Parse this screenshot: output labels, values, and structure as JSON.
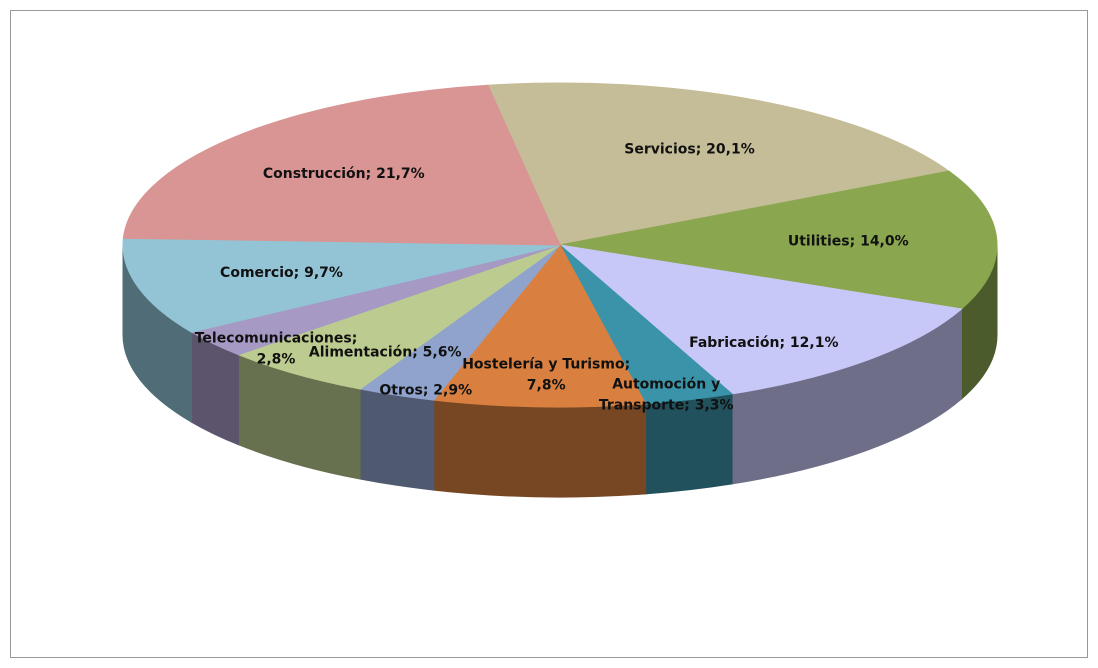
{
  "chart_data": {
    "type": "pie",
    "values": [
      20.1,
      14.0,
      12.1,
      3.3,
      7.8,
      2.9,
      5.6,
      2.8,
      9.7,
      21.7
    ],
    "value_labels": [
      [
        "Servicios; 20,1%"
      ],
      [
        "Utilities; 14,0%"
      ],
      [
        "Fabricación; 12,1%"
      ],
      [
        "Automoción y",
        "Transporte; 3,3%"
      ],
      [
        "Hostelería y Turismo;",
        "7,8%"
      ],
      [
        "Otros; 2,9%"
      ],
      [
        "Alimentación; 5,6%"
      ],
      [
        "Telecomunicaciones;",
        "2,8%"
      ],
      [
        "Comercio; 9,7%"
      ],
      [
        "Construcción; 21,7%"
      ]
    ],
    "colors": [
      "#c4bd97",
      "#8aa64f",
      "#c8c8f8",
      "#3a93a8",
      "#d98040",
      "#8fa3cc",
      "#bccb8f",
      "#a699c4",
      "#92c4d6",
      "#d99594"
    ]
  }
}
